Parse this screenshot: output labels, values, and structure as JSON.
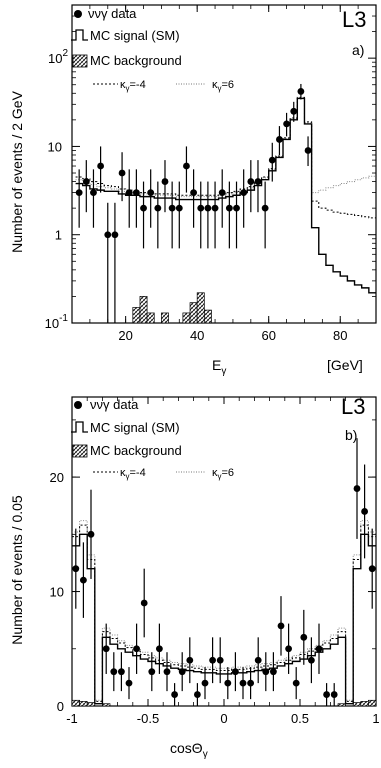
{
  "chart_data": [
    {
      "type": "bar",
      "panel_label": "a)",
      "experiment": "L3",
      "xlabel": "E",
      "xlabel_sub": "γ",
      "xunit": "[GeV]",
      "ylabel": "Number of events / 2 GeV",
      "xlim": [
        5,
        90
      ],
      "ylim": [
        0.1,
        400
      ],
      "yscale": "log",
      "xticks": [
        20,
        40,
        60,
        80
      ],
      "yticks": [
        {
          "v": 0.1,
          "base": "10",
          "exp": "-1"
        },
        {
          "v": 1,
          "base": "1",
          "exp": ""
        },
        {
          "v": 10,
          "base": "10",
          "exp": ""
        },
        {
          "v": 100,
          "base": "10",
          "exp": "2"
        }
      ],
      "legend": {
        "data": "ννγ data",
        "signal": "MC signal (SM)",
        "background": "MC background",
        "k_m4": "κ",
        "k_m4_sub": "γ",
        "k_m4_val": "=-4",
        "k_6": "κ",
        "k_6_sub": "γ",
        "k_6_val": "=6"
      },
      "bin_edges": [
        6,
        8,
        10,
        12,
        14,
        16,
        18,
        20,
        22,
        24,
        26,
        28,
        30,
        32,
        34,
        36,
        38,
        40,
        42,
        44,
        46,
        48,
        50,
        52,
        54,
        56,
        58,
        60,
        62,
        64,
        66,
        68,
        70,
        72,
        74,
        76,
        78,
        80,
        82,
        84,
        86,
        88,
        90
      ],
      "signal": [
        3.8,
        3.6,
        3.3,
        3.2,
        3.1,
        3.1,
        2.9,
        2.8,
        2.8,
        2.7,
        2.7,
        2.6,
        2.6,
        2.6,
        2.5,
        2.5,
        2.5,
        2.5,
        2.5,
        2.5,
        2.6,
        2.7,
        2.8,
        3.0,
        3.2,
        3.6,
        4.2,
        5.3,
        7.5,
        12,
        20,
        35,
        18,
        1.2,
        0.6,
        0.45,
        0.38,
        0.34,
        0.3,
        0.27,
        0.25,
        0.22
      ],
      "kappa_m4": [
        4.5,
        4.3,
        4.0,
        3.8,
        3.6,
        3.5,
        3.3,
        3.2,
        3.1,
        3.0,
        3.0,
        2.9,
        2.9,
        2.9,
        2.8,
        2.8,
        2.8,
        2.8,
        2.8,
        2.8,
        2.9,
        3.0,
        3.1,
        3.3,
        3.5,
        3.9,
        4.5,
        5.6,
        7.8,
        12.5,
        21,
        36,
        19,
        2.4,
        2.0,
        1.9,
        1.8,
        1.75,
        1.7,
        1.65,
        1.6,
        1.55
      ],
      "kappa_6": [
        4.2,
        4.0,
        3.7,
        3.5,
        3.4,
        3.3,
        3.1,
        3.0,
        3.0,
        2.9,
        2.9,
        2.8,
        2.8,
        2.8,
        2.7,
        2.7,
        2.7,
        2.7,
        2.7,
        2.7,
        2.8,
        2.9,
        3.0,
        3.2,
        3.4,
        3.8,
        4.4,
        5.5,
        7.7,
        12.3,
        20.5,
        35.5,
        18.5,
        3.0,
        3.2,
        3.4,
        3.6,
        3.8,
        4.0,
        4.2,
        4.4,
        4.6
      ],
      "background_bins": [
        {
          "x0": 22,
          "x1": 24,
          "v": 0.15
        },
        {
          "x0": 24,
          "x1": 26,
          "v": 0.2
        },
        {
          "x0": 26,
          "x1": 28,
          "v": 0.13
        },
        {
          "x0": 30,
          "x1": 32,
          "v": 0.13
        },
        {
          "x0": 36,
          "x1": 38,
          "v": 0.13
        },
        {
          "x0": 38,
          "x1": 40,
          "v": 0.17
        },
        {
          "x0": 40,
          "x1": 42,
          "v": 0.22
        },
        {
          "x0": 42,
          "x1": 44,
          "v": 0.14
        }
      ],
      "data": [
        {
          "x": 7,
          "y": 3,
          "lo": 1.2,
          "hi": 5.5
        },
        {
          "x": 9,
          "y": 4,
          "lo": 1.8,
          "hi": 7.0
        },
        {
          "x": 11,
          "y": 3,
          "lo": 1.2,
          "hi": 5.5
        },
        {
          "x": 13,
          "y": 6,
          "lo": 3.0,
          "hi": 10.0
        },
        {
          "x": 15,
          "y": 1,
          "lo": 0.1,
          "hi": 2.3
        },
        {
          "x": 17,
          "y": 1,
          "lo": 0.1,
          "hi": 2.3
        },
        {
          "x": 19,
          "y": 5,
          "lo": 2.4,
          "hi": 8.6
        },
        {
          "x": 21,
          "y": 3,
          "lo": 1.2,
          "hi": 5.5
        },
        {
          "x": 23,
          "y": 3,
          "lo": 1.2,
          "hi": 5.5
        },
        {
          "x": 25,
          "y": 2,
          "lo": 0.7,
          "hi": 4.0
        },
        {
          "x": 27,
          "y": 3,
          "lo": 1.2,
          "hi": 5.5
        },
        {
          "x": 29,
          "y": 2,
          "lo": 0.7,
          "hi": 4.0
        },
        {
          "x": 31,
          "y": 4,
          "lo": 1.8,
          "hi": 7.0
        },
        {
          "x": 33,
          "y": 2,
          "lo": 0.7,
          "hi": 4.0
        },
        {
          "x": 35,
          "y": 2,
          "lo": 0.7,
          "hi": 4.0
        },
        {
          "x": 37,
          "y": 6,
          "lo": 3.0,
          "hi": 10.0
        },
        {
          "x": 39,
          "y": 3,
          "lo": 1.2,
          "hi": 5.5
        },
        {
          "x": 41,
          "y": 2,
          "lo": 0.7,
          "hi": 4.0
        },
        {
          "x": 43,
          "y": 2,
          "lo": 0.7,
          "hi": 4.0
        },
        {
          "x": 45,
          "y": 2,
          "lo": 0.7,
          "hi": 4.0
        },
        {
          "x": 47,
          "y": 3,
          "lo": 1.2,
          "hi": 5.5
        },
        {
          "x": 49,
          "y": 2,
          "lo": 0.7,
          "hi": 4.0
        },
        {
          "x": 51,
          "y": 2,
          "lo": 0.7,
          "hi": 4.0
        },
        {
          "x": 53,
          "y": 3,
          "lo": 1.2,
          "hi": 5.5
        },
        {
          "x": 55,
          "y": 4,
          "lo": 1.8,
          "hi": 7.0
        },
        {
          "x": 57,
          "y": 4,
          "lo": 1.8,
          "hi": 7.0
        },
        {
          "x": 59,
          "y": 2,
          "lo": 0.7,
          "hi": 4.0
        },
        {
          "x": 61,
          "y": 7,
          "lo": 4.0,
          "hi": 11.0
        },
        {
          "x": 63,
          "y": 12,
          "lo": 8.0,
          "hi": 17.0
        },
        {
          "x": 65,
          "y": 18,
          "lo": 13.0,
          "hi": 24.0
        },
        {
          "x": 67,
          "y": 25,
          "lo": 19.0,
          "hi": 32.0
        },
        {
          "x": 69,
          "y": 42,
          "lo": 34.0,
          "hi": 51.0
        },
        {
          "x": 71,
          "y": 9,
          "lo": 6.0,
          "hi": 13.0
        }
      ]
    },
    {
      "type": "bar",
      "panel_label": "b)",
      "experiment": "L3",
      "xlabel": "cosΘ",
      "xlabel_sub": "γ",
      "ylabel": "Number of events / 0.05",
      "xlim": [
        -1,
        1
      ],
      "ylim": [
        0,
        27
      ],
      "yscale": "linear",
      "xticks": [
        {
          "v": -1,
          "t": "-1"
        },
        {
          "v": -0.5,
          "t": "-0.5"
        },
        {
          "v": 0,
          "t": "0"
        },
        {
          "v": 0.5,
          "t": "0.5"
        },
        {
          "v": 1,
          "t": "1"
        }
      ],
      "yticks": [
        0,
        10,
        20
      ],
      "legend": {
        "data": "ννγ data",
        "signal": "MC signal (SM)",
        "background": "MC background",
        "k_m4": "κ",
        "k_m4_sub": "γ",
        "k_m4_val": "=-4",
        "k_6": "κ",
        "k_6_sub": "γ",
        "k_6_val": "=6"
      },
      "bin_edges": [
        -1,
        -0.95,
        -0.9,
        -0.85,
        -0.8,
        -0.75,
        -0.7,
        -0.65,
        -0.6,
        -0.55,
        -0.5,
        -0.45,
        -0.4,
        -0.35,
        -0.3,
        -0.25,
        -0.2,
        -0.15,
        -0.1,
        -0.05,
        0,
        0.05,
        0.1,
        0.15,
        0.2,
        0.25,
        0.3,
        0.35,
        0.4,
        0.45,
        0.5,
        0.55,
        0.6,
        0.65,
        0.7,
        0.75,
        0.8,
        0.85,
        0.9,
        0.95,
        1
      ],
      "signal": [
        14,
        15,
        12,
        0.2,
        6.0,
        5.4,
        5.0,
        4.7,
        4.4,
        4.1,
        3.9,
        3.7,
        3.5,
        3.3,
        3.2,
        3.1,
        3.0,
        2.9,
        2.9,
        2.8,
        2.8,
        2.9,
        2.9,
        3.0,
        3.1,
        3.2,
        3.3,
        3.5,
        3.7,
        3.9,
        4.1,
        4.4,
        4.7,
        5.0,
        5.4,
        6.0,
        0.2,
        12,
        15,
        14
      ],
      "kappa_m4": [
        14.8,
        15.8,
        12.8,
        0.4,
        6.5,
        5.9,
        5.5,
        5.1,
        4.8,
        4.5,
        4.2,
        4.0,
        3.8,
        3.6,
        3.5,
        3.4,
        3.3,
        3.2,
        3.2,
        3.1,
        3.1,
        3.2,
        3.2,
        3.3,
        3.4,
        3.5,
        3.6,
        3.8,
        4.0,
        4.2,
        4.5,
        4.8,
        5.1,
        5.5,
        5.9,
        6.5,
        0.4,
        12.8,
        15.8,
        14.8
      ],
      "kappa_6": [
        15.2,
        16.2,
        13.2,
        0.5,
        6.8,
        6.2,
        5.7,
        5.3,
        5.0,
        4.7,
        4.4,
        4.2,
        4.0,
        3.8,
        3.7,
        3.6,
        3.5,
        3.4,
        3.4,
        3.3,
        3.3,
        3.4,
        3.4,
        3.5,
        3.6,
        3.7,
        3.8,
        4.0,
        4.2,
        4.4,
        4.7,
        5.0,
        5.3,
        5.7,
        6.2,
        6.8,
        0.5,
        13.2,
        16.2,
        15.2
      ],
      "background_bins": [
        {
          "x0": -1,
          "x1": -0.95,
          "v": 0.5
        },
        {
          "x0": -0.95,
          "x1": -0.9,
          "v": 0.4
        },
        {
          "x0": -0.9,
          "x1": -0.85,
          "v": 0.3
        },
        {
          "x0": -0.8,
          "x1": -0.75,
          "v": 0.2
        },
        {
          "x0": 0.75,
          "x1": 0.8,
          "v": 0.2
        },
        {
          "x0": 0.85,
          "x1": 0.9,
          "v": 0.3
        },
        {
          "x0": 0.9,
          "x1": 0.95,
          "v": 0.4
        },
        {
          "x0": 0.95,
          "x1": 1,
          "v": 0.5
        }
      ],
      "data": [
        {
          "x": -0.975,
          "y": 12,
          "lo": 8.5,
          "hi": 15.5
        },
        {
          "x": -0.925,
          "y": 11,
          "lo": 7.7,
          "hi": 14.3
        },
        {
          "x": -0.875,
          "y": 15,
          "lo": 11.1,
          "hi": 18.9
        },
        {
          "x": -0.775,
          "y": 5,
          "lo": 2.8,
          "hi": 7.2
        },
        {
          "x": -0.725,
          "y": 3,
          "lo": 1.3,
          "hi": 4.7
        },
        {
          "x": -0.675,
          "y": 3,
          "lo": 1.3,
          "hi": 4.7
        },
        {
          "x": -0.625,
          "y": 2,
          "lo": 0.6,
          "hi": 3.4
        },
        {
          "x": -0.575,
          "y": 5,
          "lo": 2.8,
          "hi": 7.2
        },
        {
          "x": -0.525,
          "y": 9,
          "lo": 6.0,
          "hi": 12.0
        },
        {
          "x": -0.475,
          "y": 3,
          "lo": 1.3,
          "hi": 4.7
        },
        {
          "x": -0.425,
          "y": 5,
          "lo": 2.8,
          "hi": 7.2
        },
        {
          "x": -0.375,
          "y": 3,
          "lo": 1.3,
          "hi": 4.7
        },
        {
          "x": -0.325,
          "y": 1,
          "lo": 0.0,
          "hi": 2.0
        },
        {
          "x": -0.275,
          "y": 3,
          "lo": 1.3,
          "hi": 4.7
        },
        {
          "x": -0.225,
          "y": 4,
          "lo": 2.0,
          "hi": 6.0
        },
        {
          "x": -0.175,
          "y": 1,
          "lo": 0.0,
          "hi": 2.0
        },
        {
          "x": -0.125,
          "y": 2,
          "lo": 0.6,
          "hi": 3.4
        },
        {
          "x": -0.075,
          "y": 4,
          "lo": 2.0,
          "hi": 6.0
        },
        {
          "x": -0.025,
          "y": 4,
          "lo": 2.0,
          "hi": 6.0
        },
        {
          "x": 0.025,
          "y": 2,
          "lo": 0.6,
          "hi": 3.4
        },
        {
          "x": 0.075,
          "y": 3,
          "lo": 1.3,
          "hi": 4.7
        },
        {
          "x": 0.125,
          "y": 2,
          "lo": 0.6,
          "hi": 3.4
        },
        {
          "x": 0.175,
          "y": 2,
          "lo": 0.6,
          "hi": 3.4
        },
        {
          "x": 0.225,
          "y": 4,
          "lo": 2.0,
          "hi": 6.0
        },
        {
          "x": 0.275,
          "y": 3,
          "lo": 1.3,
          "hi": 4.7
        },
        {
          "x": 0.325,
          "y": 3,
          "lo": 1.3,
          "hi": 4.7
        },
        {
          "x": 0.375,
          "y": 7,
          "lo": 4.4,
          "hi": 9.6
        },
        {
          "x": 0.425,
          "y": 5,
          "lo": 2.8,
          "hi": 7.2
        },
        {
          "x": 0.475,
          "y": 2,
          "lo": 0.6,
          "hi": 3.4
        },
        {
          "x": 0.525,
          "y": 6,
          "lo": 3.6,
          "hi": 8.4
        },
        {
          "x": 0.575,
          "y": 4,
          "lo": 2.0,
          "hi": 6.0
        },
        {
          "x": 0.625,
          "y": 5,
          "lo": 2.8,
          "hi": 7.2
        },
        {
          "x": 0.675,
          "y": 1,
          "lo": 0.0,
          "hi": 2.0
        },
        {
          "x": 0.725,
          "y": 1,
          "lo": 0.0,
          "hi": 2.0
        },
        {
          "x": 0.875,
          "y": 19,
          "lo": 14.6,
          "hi": 23.4
        },
        {
          "x": 0.925,
          "y": 17,
          "lo": 12.9,
          "hi": 21.1
        },
        {
          "x": 0.975,
          "y": 12,
          "lo": 8.5,
          "hi": 15.5
        }
      ]
    }
  ]
}
